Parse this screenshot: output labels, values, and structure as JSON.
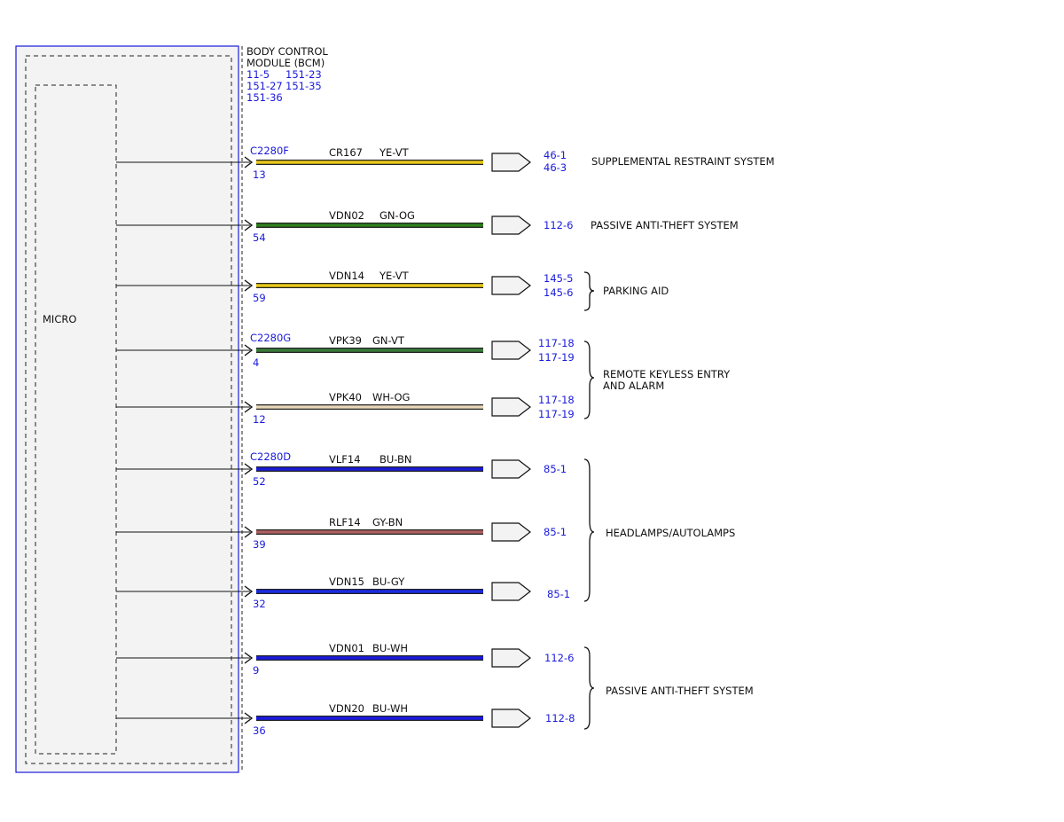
{
  "module": {
    "title_line1": "BODY CONTROL",
    "title_line2": "MODULE (BCM)",
    "refs_line1_a": "11-5",
    "refs_line1_b": "151-23",
    "refs_line2_a": "151-27",
    "refs_line2_b": "151-35",
    "refs_line3_a": "151-36",
    "micro_label": "MICRO"
  },
  "connectors": [
    {
      "name": "C2280F"
    },
    {
      "name": "C2280G"
    },
    {
      "name": "C2280D"
    }
  ],
  "colors": {
    "module_border": "#1a1adc",
    "ref_text": "#1a1adc",
    "YE-VT": "#e8c71a",
    "GN-OG": "#2e7d1e",
    "GN-VT": "#3a7a3a",
    "WH-OG": "#e8d8b8",
    "BU-BN": "#1a1ad8",
    "GY-BN": "#b06060",
    "BU-GY": "#1a2ae0",
    "BU-WH": "#1a1ae0"
  },
  "wires": [
    {
      "pin": "13",
      "circuit": "CR167",
      "color": "YE-VT",
      "refs": [
        "46-1",
        "46-3"
      ]
    },
    {
      "pin": "54",
      "circuit": "VDN02",
      "color": "GN-OG",
      "refs": [
        "112-6"
      ]
    },
    {
      "pin": "59",
      "circuit": "VDN14",
      "color": "YE-VT",
      "refs": [
        "145-5",
        "145-6"
      ]
    },
    {
      "pin": "4",
      "circuit": "VPK39",
      "color": "GN-VT",
      "refs": [
        "117-18",
        "117-19"
      ]
    },
    {
      "pin": "12",
      "circuit": "VPK40",
      "color": "WH-OG",
      "refs": [
        "117-18",
        "117-19"
      ]
    },
    {
      "pin": "52",
      "circuit": "VLF14",
      "color": "BU-BN",
      "refs": [
        "85-1"
      ]
    },
    {
      "pin": "39",
      "circuit": "RLF14",
      "color": "GY-BN",
      "refs": [
        "85-1"
      ]
    },
    {
      "pin": "32",
      "circuit": "VDN15",
      "color": "BU-GY",
      "refs": [
        "85-1"
      ]
    },
    {
      "pin": "9",
      "circuit": "VDN01",
      "color": "BU-WH",
      "refs": [
        "112-6"
      ]
    },
    {
      "pin": "36",
      "circuit": "VDN20",
      "color": "BU-WH",
      "refs": [
        "112-8"
      ]
    }
  ],
  "systems": {
    "srs": "SUPPLEMENTAL RESTRAINT SYSTEM",
    "pats_top": "PASSIVE ANTI-THEFT SYSTEM",
    "parking": "PARKING AID",
    "rke_line1": "REMOTE KEYLESS ENTRY",
    "rke_line2": "AND ALARM",
    "headlamps": "HEADLAMPS/AUTOLAMPS",
    "pats_bottom": "PASSIVE ANTI-THEFT SYSTEM"
  }
}
